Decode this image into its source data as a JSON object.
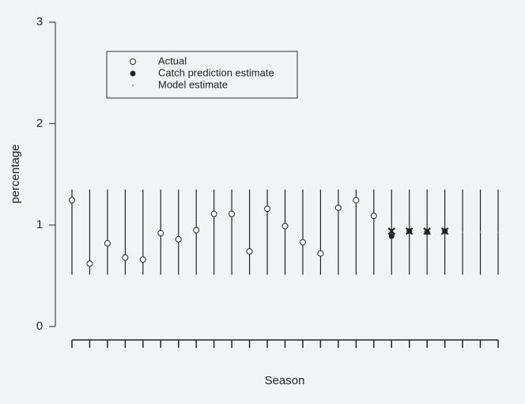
{
  "chart_data": {
    "type": "interval-scatter",
    "x_label": "Season",
    "y_label": "percentage",
    "categories": [
      null,
      null,
      null,
      null,
      null,
      null,
      null,
      null,
      null,
      null,
      null,
      null,
      null,
      null,
      null,
      null,
      null,
      null,
      null,
      null,
      null,
      null,
      null,
      null,
      null
    ],
    "intervals": [
      [
        0.51,
        1.35
      ],
      [
        0.51,
        1.35
      ],
      [
        0.51,
        1.35
      ],
      [
        0.51,
        1.35
      ],
      [
        0.51,
        1.35
      ],
      [
        0.51,
        1.35
      ],
      [
        0.51,
        1.35
      ],
      [
        0.51,
        1.35
      ],
      [
        0.51,
        1.35
      ],
      [
        0.51,
        1.35
      ],
      [
        0.51,
        1.35
      ],
      [
        0.51,
        1.35
      ],
      [
        0.51,
        1.35
      ],
      [
        0.51,
        1.35
      ],
      [
        0.51,
        1.35
      ],
      [
        0.51,
        1.35
      ],
      [
        0.51,
        1.35
      ],
      [
        0.51,
        1.35
      ],
      [
        0.51,
        1.35
      ],
      [
        0.51,
        1.35
      ],
      [
        0.51,
        1.35
      ],
      [
        0.51,
        1.35
      ],
      [
        0.51,
        1.35
      ],
      [
        0.51,
        1.35
      ],
      [
        0.51,
        1.35
      ]
    ],
    "series": [
      {
        "name": "Actual",
        "color": "#222222",
        "marker": "open-circle",
        "values": [
          1.245,
          0.62,
          0.82,
          0.68,
          0.66,
          0.92,
          0.86,
          0.95,
          1.11,
          1.11,
          0.74,
          1.16,
          0.99,
          0.83,
          0.72,
          1.17,
          1.245,
          1.09,
          null,
          null,
          null,
          null,
          null,
          null,
          null
        ]
      },
      {
        "name": "Catch prediction estimate",
        "color": "#222222",
        "marker": "filled-circle",
        "values": [
          null,
          null,
          null,
          null,
          null,
          null,
          null,
          null,
          null,
          null,
          null,
          null,
          null,
          null,
          null,
          null,
          null,
          null,
          0.89,
          0.94,
          0.93,
          0.94,
          null,
          null,
          null
        ]
      },
      {
        "name": "Model estimate",
        "color": "#888888",
        "marker": "dot",
        "values": [
          null,
          null,
          null,
          null,
          null,
          null,
          null,
          null,
          null,
          null,
          null,
          null,
          null,
          null,
          null,
          null,
          null,
          null,
          0.94,
          0.94,
          0.94,
          0.94,
          0.93,
          0.93,
          0.93
        ]
      }
    ],
    "ylim": [
      0,
      3
    ],
    "yticks": [
      0,
      1,
      2,
      3
    ],
    "legend": "top-left"
  }
}
